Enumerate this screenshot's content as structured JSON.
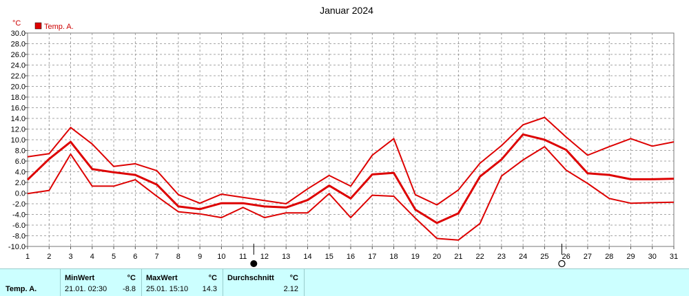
{
  "chart_data": {
    "type": "line",
    "title": "Januar 2024",
    "ylabel": "°C",
    "ylim": [
      -10,
      30
    ],
    "ystep": 2,
    "x": [
      1,
      2,
      3,
      4,
      5,
      6,
      7,
      8,
      9,
      10,
      11,
      12,
      13,
      14,
      15,
      16,
      17,
      18,
      19,
      20,
      21,
      22,
      23,
      24,
      25,
      26,
      27,
      28,
      29,
      30,
      31
    ],
    "legend": "Temp. A.",
    "color": "#dd0000",
    "series": [
      {
        "role": "max",
        "values": [
          6.8,
          7.4,
          12.3,
          9.2,
          5.0,
          5.5,
          4.2,
          -0.3,
          -1.9,
          -0.2,
          -0.8,
          -1.4,
          -2.0,
          0.8,
          3.3,
          1.3,
          7.1,
          10.2,
          -0.3,
          -2.2,
          0.6,
          5.6,
          8.9,
          12.8,
          14.2,
          10.5,
          7.1,
          8.7,
          10.2,
          8.8,
          9.6
        ]
      },
      {
        "role": "mean",
        "values": [
          2.5,
          6.4,
          9.6,
          4.5,
          3.9,
          3.4,
          1.6,
          -2.5,
          -3.0,
          -1.9,
          -1.9,
          -2.5,
          -2.7,
          -1.3,
          1.4,
          -1.0,
          3.5,
          3.8,
          -3.1,
          -5.6,
          -3.8,
          3.1,
          6.3,
          11.0,
          10.0,
          8.1,
          3.7,
          3.4,
          2.6,
          2.6,
          2.7
        ]
      },
      {
        "role": "min",
        "values": [
          -0.1,
          0.5,
          7.3,
          1.3,
          1.3,
          2.5,
          -0.6,
          -3.5,
          -3.9,
          -4.6,
          -2.7,
          -4.6,
          -3.7,
          -3.7,
          -0.1,
          -4.6,
          -0.4,
          -0.6,
          -4.7,
          -8.5,
          -8.8,
          -5.7,
          3.2,
          6.2,
          8.7,
          4.3,
          1.8,
          -1.0,
          -1.9,
          -1.8,
          -1.7
        ]
      }
    ],
    "markers": [
      {
        "x": 11.5,
        "symbol": "filled-circle"
      },
      {
        "x": 25.8,
        "symbol": "open-circle"
      }
    ]
  },
  "stats": {
    "row_label": "Temp. A.",
    "min": {
      "header": "MinWert",
      "unit": "°C",
      "time": "21.01.  02:30",
      "value": "-8.8"
    },
    "max": {
      "header": "MaxWert",
      "unit": "°C",
      "time": "25.01.  15:10",
      "value": "14.3"
    },
    "avg": {
      "header": "Durchschnitt",
      "unit": "°C",
      "value": "2.12"
    }
  }
}
